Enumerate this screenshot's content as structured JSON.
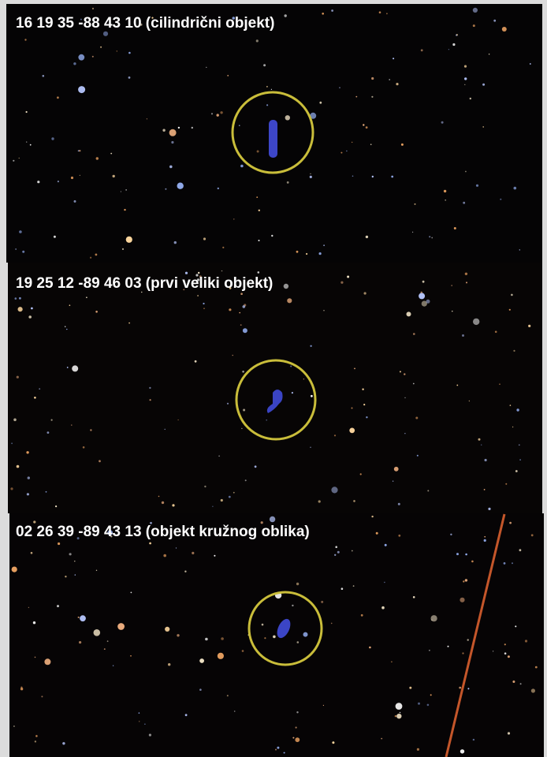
{
  "panels": [
    {
      "caption": "16 19 35 -88 43 10 (cilindrični objekt)"
    },
    {
      "caption": "19 25 12 -89 46 03 (prvi veliki objekt)"
    },
    {
      "caption": "02 26 39 -89 43 13 (objekt kružnog oblika)"
    }
  ]
}
